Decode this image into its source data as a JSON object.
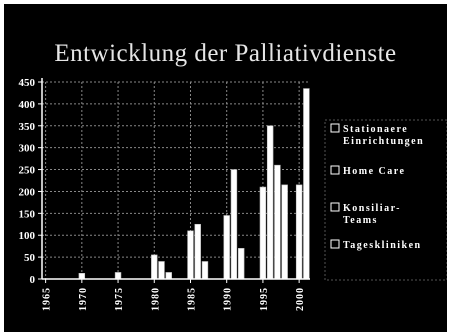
{
  "chart_data": {
    "type": "bar",
    "title": "Entwicklung der Palliativdienste",
    "xlabel": "",
    "ylabel": "",
    "ylim": [
      0,
      450
    ],
    "yticks": [
      0,
      50,
      100,
      150,
      200,
      250,
      300,
      350,
      400,
      450
    ],
    "categories": [
      "1965",
      "1966",
      "1967",
      "1968",
      "1969",
      "1970",
      "1971",
      "1972",
      "1973",
      "1974",
      "1975",
      "1976",
      "1977",
      "1978",
      "1979",
      "1980",
      "1981",
      "1982",
      "1983",
      "1984",
      "1985",
      "1986",
      "1987",
      "1988",
      "1989",
      "1990",
      "1991",
      "1992",
      "1993",
      "1994",
      "1995",
      "1996",
      "1997",
      "1998",
      "1999",
      "2000",
      "2001"
    ],
    "tick_labels": [
      "1965",
      "1970",
      "1975",
      "1980",
      "1985",
      "1990",
      "1995",
      "2000"
    ],
    "grid": true,
    "legend_position": "right",
    "colors": {
      "background": "#000000",
      "bar_fill": "#ffffff",
      "text": "#ffffff",
      "grid": "#888888"
    },
    "series": [
      {
        "name": "Stationaere Einrichtungen",
        "name_lines": [
          "Stationaere",
          "Einrichtungen"
        ],
        "values": [
          null,
          null,
          null,
          null,
          null,
          13,
          null,
          null,
          null,
          null,
          15,
          null,
          null,
          null,
          null,
          55,
          null,
          null,
          null,
          null,
          110,
          null,
          null,
          null,
          null,
          145,
          null,
          null,
          null,
          null,
          210,
          null,
          null,
          null,
          null,
          215,
          null
        ]
      },
      {
        "name": "Home Care",
        "name_lines": [
          "Home Care"
        ],
        "values": [
          null,
          null,
          null,
          null,
          null,
          null,
          null,
          null,
          null,
          null,
          null,
          null,
          null,
          null,
          null,
          null,
          40,
          null,
          null,
          null,
          null,
          125,
          null,
          null,
          null,
          null,
          250,
          null,
          null,
          null,
          null,
          350,
          null,
          null,
          null,
          null,
          435
        ]
      },
      {
        "name": "Konsiliar-Teams",
        "name_lines": [
          "Konsiliar-",
          "Teams"
        ],
        "values": [
          null,
          null,
          null,
          null,
          null,
          null,
          null,
          null,
          null,
          null,
          null,
          null,
          null,
          null,
          null,
          null,
          null,
          15,
          null,
          null,
          null,
          null,
          40,
          null,
          null,
          null,
          null,
          70,
          null,
          null,
          null,
          null,
          260,
          null,
          null,
          null,
          null
        ]
      },
      {
        "name": "Tageskliniken",
        "name_lines": [
          "Tageskliniken"
        ],
        "values": [
          null,
          null,
          null,
          null,
          null,
          null,
          null,
          null,
          null,
          null,
          null,
          null,
          null,
          null,
          null,
          null,
          null,
          null,
          null,
          null,
          null,
          null,
          null,
          null,
          null,
          null,
          null,
          null,
          null,
          null,
          null,
          null,
          null,
          215,
          null,
          null,
          null
        ]
      }
    ]
  }
}
